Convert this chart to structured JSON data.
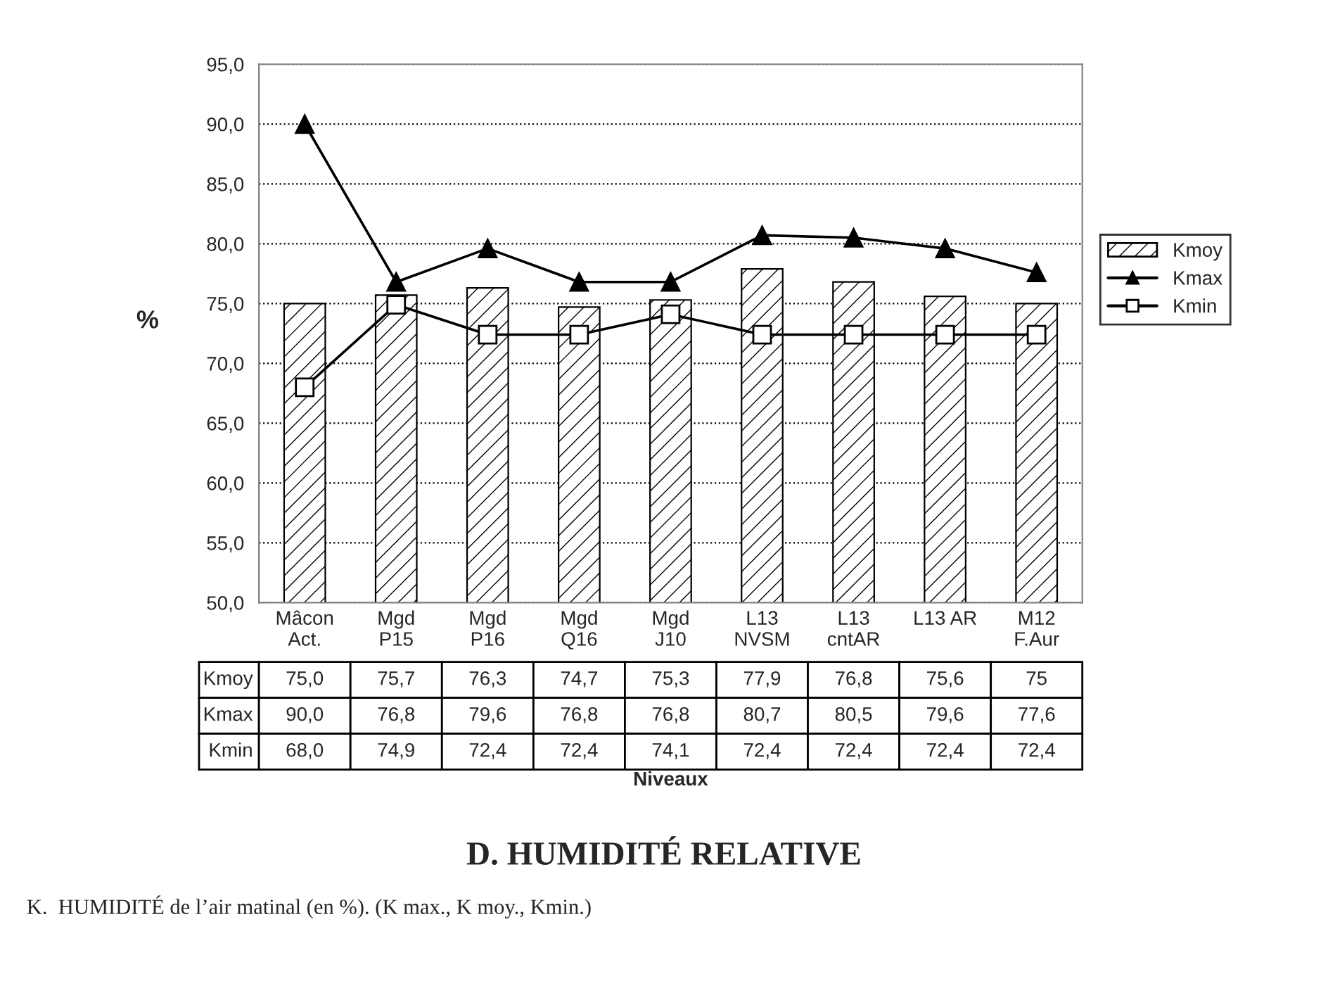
{
  "chart_data": {
    "type": "bar",
    "title": "D. HUMIDITÉ RELATIVE",
    "ylabel": "%",
    "annotations": [
      "Niveaux",
      "K.  HUMIDITÉ de l’air matinal (en %). (K max., K moy., Kmin.)"
    ],
    "categories": [
      "Mâcon\nAct.",
      "Mgd\nP15",
      "Mgd\nP16",
      "Mgd\nQ16",
      "Mgd\nJ10",
      "L13\nNVSM",
      "L13\ncntAR",
      "L13 AR",
      "M12\nF.Aur"
    ],
    "series": [
      {
        "name": "Kmoy",
        "type": "bar",
        "color": "#000000",
        "values": [
          75.0,
          75.7,
          76.3,
          74.7,
          75.3,
          77.9,
          76.8,
          75.6,
          75
        ],
        "value_labels": [
          "75,0",
          "75,7",
          "76,3",
          "74,7",
          "75,3",
          "77,9",
          "76,8",
          "75,6",
          "75"
        ]
      },
      {
        "name": "Kmax",
        "type": "line",
        "color": "#000000",
        "marker": "triangle",
        "values": [
          90.0,
          76.8,
          79.6,
          76.8,
          76.8,
          80.7,
          80.5,
          79.6,
          77.6
        ],
        "value_labels": [
          "90,0",
          "76,8",
          "79,6",
          "76,8",
          "76,8",
          "80,7",
          "80,5",
          "79,6",
          "77,6"
        ]
      },
      {
        "name": "Kmin",
        "type": "line",
        "color": "#000000",
        "marker": "square",
        "values": [
          68.0,
          74.9,
          72.4,
          72.4,
          74.1,
          72.4,
          72.4,
          72.4,
          72.4
        ],
        "value_labels": [
          "68,0",
          "74,9",
          "72,4",
          "72,4",
          "74,1",
          "72,4",
          "72,4",
          "72,4",
          "72,4"
        ]
      }
    ],
    "ylim": [
      50,
      95
    ],
    "yticks": [
      {
        "value": 50,
        "label": "50,0"
      },
      {
        "value": 55,
        "label": "55,0"
      },
      {
        "value": 60,
        "label": "60,0"
      },
      {
        "value": 65,
        "label": "65,0"
      },
      {
        "value": 70,
        "label": "70,0"
      },
      {
        "value": 75,
        "label": "75,0"
      },
      {
        "value": 80,
        "label": "80,0"
      },
      {
        "value": 85,
        "label": "85,0"
      },
      {
        "value": 90,
        "label": "90,0"
      },
      {
        "value": 95,
        "label": "95,0"
      }
    ],
    "grid": "y",
    "legend": "right",
    "line_style": "solid"
  }
}
